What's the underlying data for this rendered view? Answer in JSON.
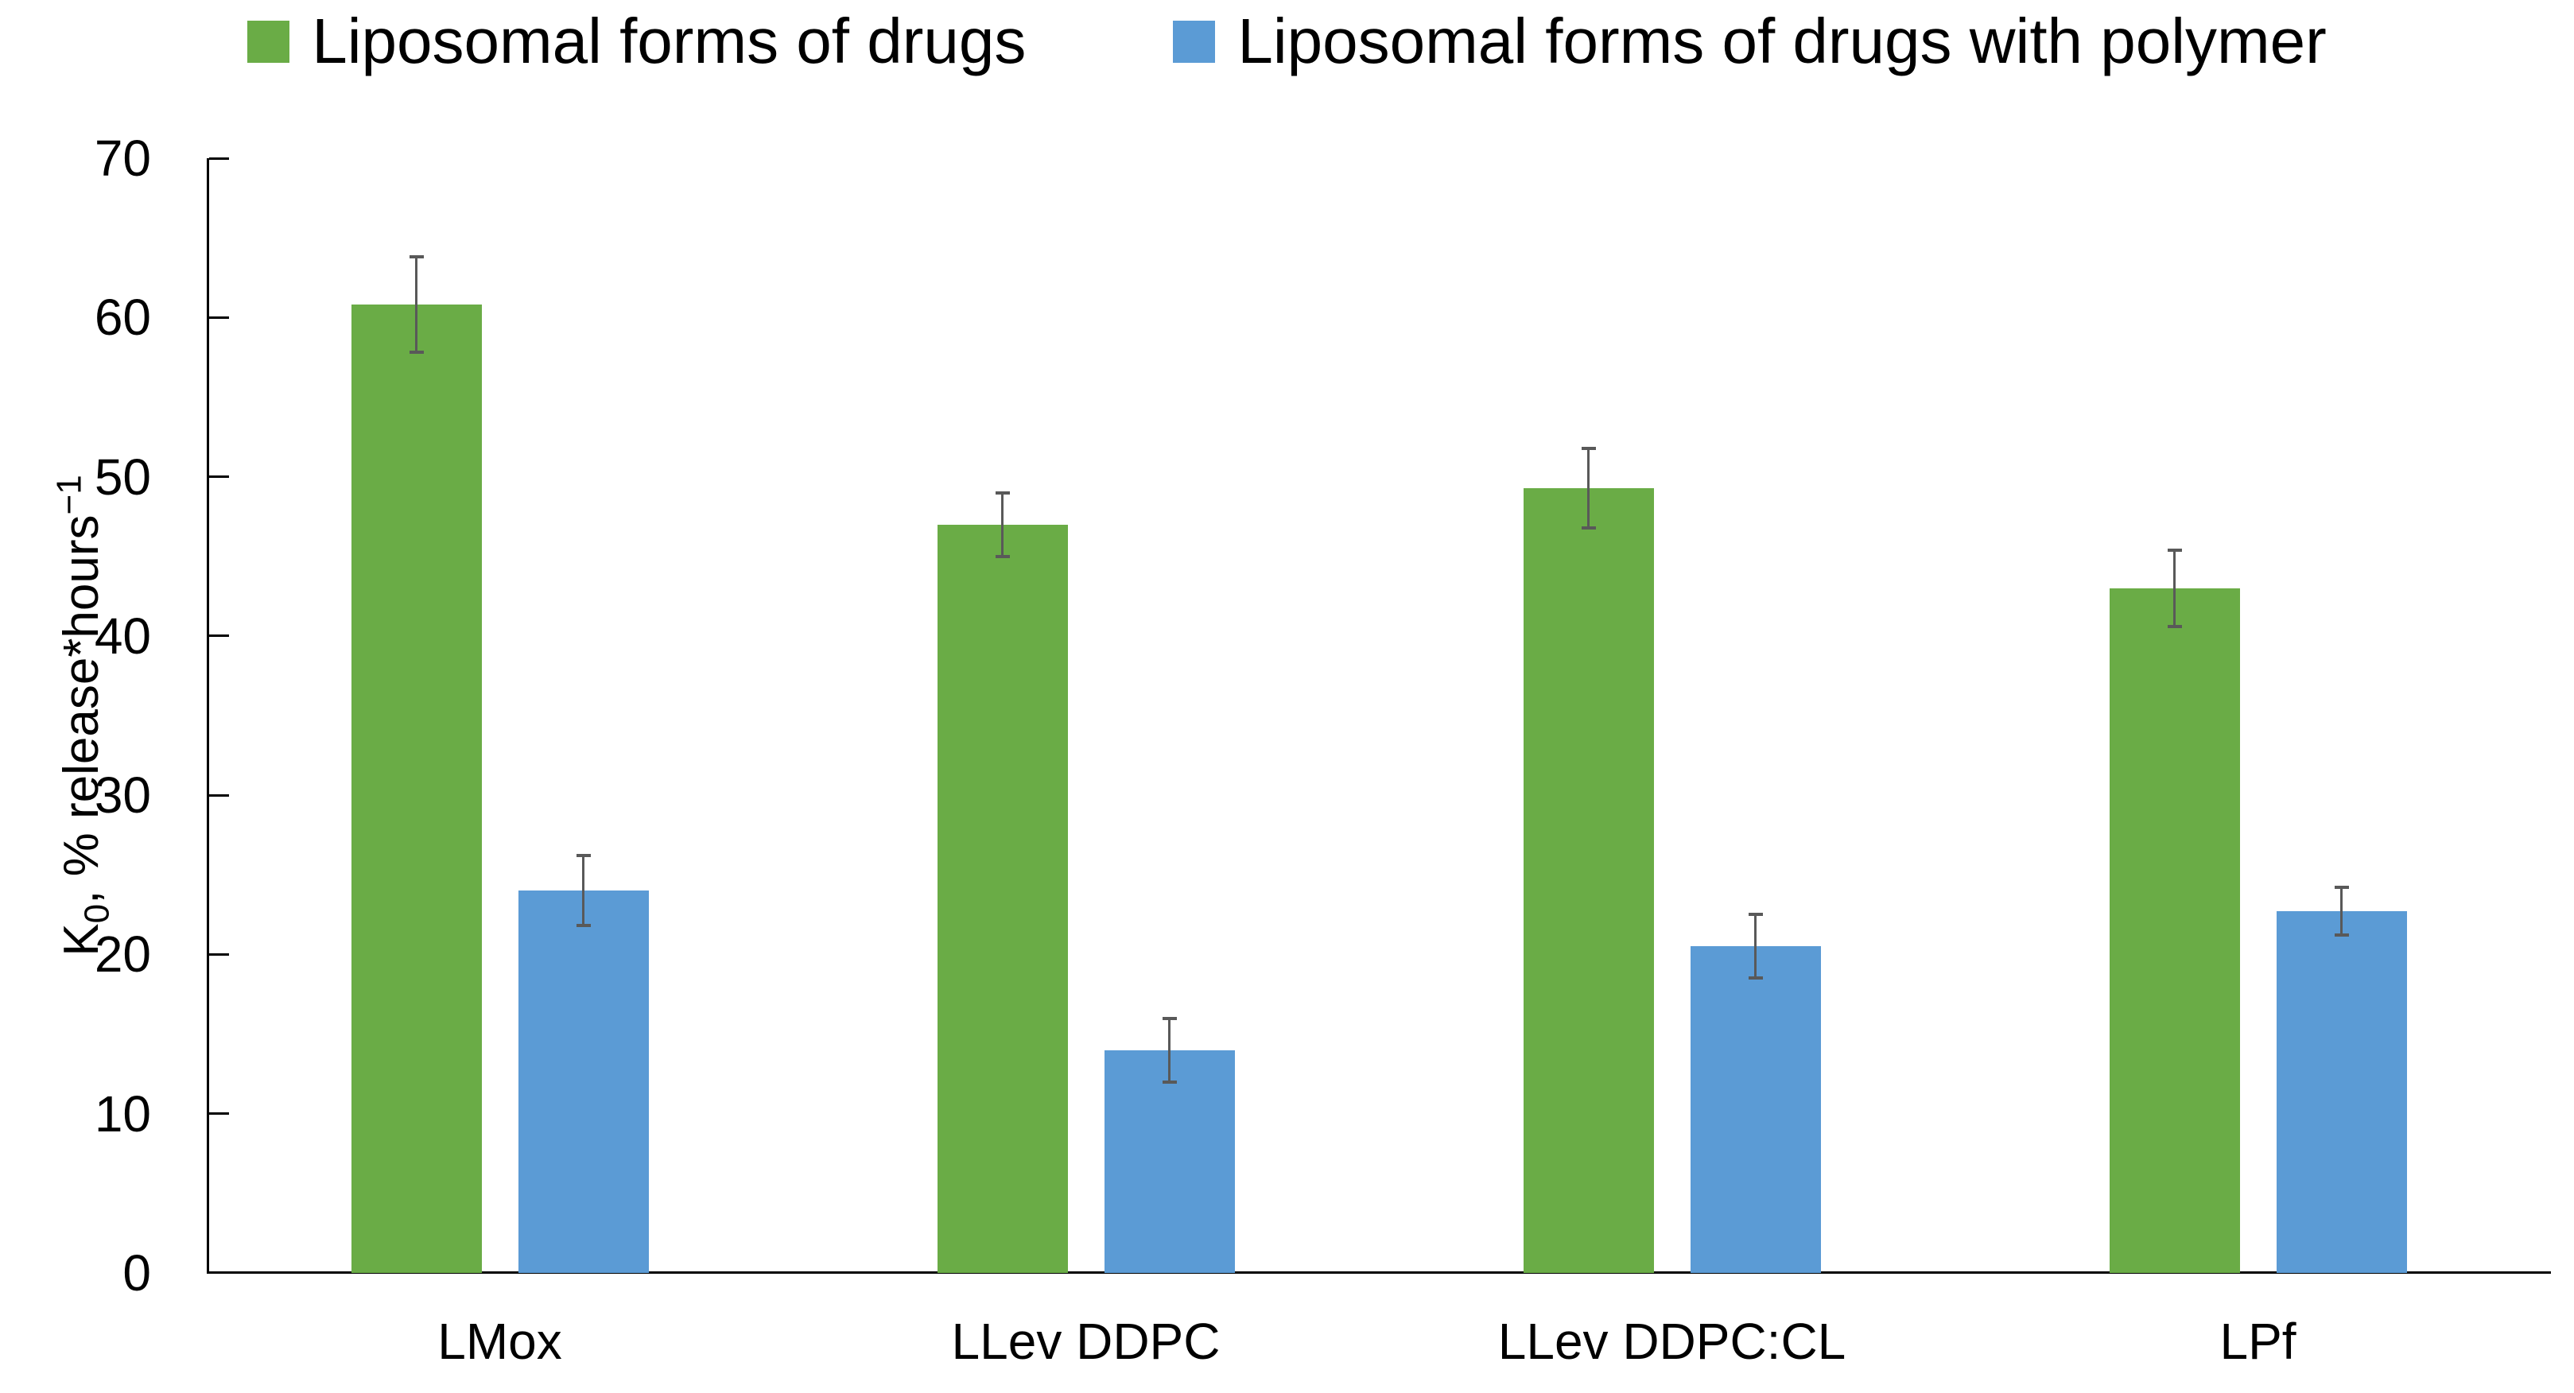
{
  "chart_data": {
    "type": "bar",
    "title": "",
    "categories": [
      "LMox",
      "LLev DDPC",
      "LLev DDPC:CL",
      "LPf"
    ],
    "series": [
      {
        "name": "Liposomal forms of drugs",
        "color": "#6AAC46",
        "values": [
          60.8,
          47.0,
          49.3,
          43.0
        ],
        "errors": [
          3.0,
          2.0,
          2.5,
          2.4
        ]
      },
      {
        "name": "Liposomal forms of drugs with polymer",
        "color": "#5B9BD5",
        "values": [
          24.0,
          14.0,
          20.5,
          22.7
        ],
        "errors": [
          2.2,
          2.0,
          2.0,
          1.5
        ]
      }
    ],
    "xlabel": "",
    "ylabel": "K0, % release*hours-1",
    "ylabel_parts": {
      "base": "K",
      "sub": "0",
      "mid": ", % release*hours",
      "sup": "−1"
    },
    "ylim": [
      0,
      70
    ],
    "yticks": [
      0,
      10,
      20,
      30,
      40,
      50,
      60,
      70
    ],
    "grid": false,
    "legend_position": "top",
    "error_bar_color": "#595959",
    "axis_color": "#000000",
    "background_color": "#ffffff"
  }
}
